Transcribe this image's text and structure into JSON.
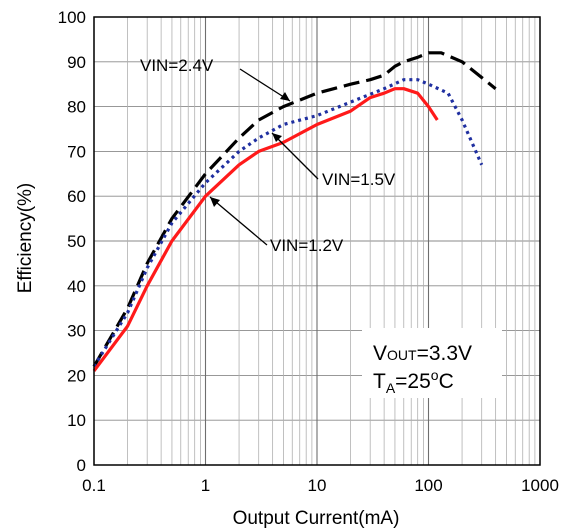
{
  "chart_data": {
    "type": "line",
    "title": "",
    "xlabel": "Output Current(mA)",
    "ylabel": "Efficiency(%)",
    "x_scale": "log",
    "xlim": [
      0.1,
      1000
    ],
    "ylim": [
      0,
      100
    ],
    "x_ticks": [
      0.1,
      1,
      10,
      100,
      1000
    ],
    "x_tick_labels": [
      "0.1",
      "1",
      "10",
      "100",
      "1000"
    ],
    "y_ticks": [
      0,
      10,
      20,
      30,
      40,
      50,
      60,
      70,
      80,
      90,
      100
    ],
    "y_tick_labels": [
      "0",
      "10",
      "20",
      "30",
      "40",
      "50",
      "60",
      "70",
      "80",
      "90",
      "100"
    ],
    "grid": true,
    "series": [
      {
        "name": "VIN=2.4V",
        "color": "#000000",
        "dash": "long-dash",
        "x": [
          0.1,
          0.2,
          0.3,
          0.5,
          1,
          2,
          3,
          5,
          10,
          20,
          30,
          40,
          50,
          60,
          80,
          100,
          130,
          200,
          400
        ],
        "y": [
          22,
          35,
          45,
          55,
          65,
          73,
          77,
          80,
          83,
          85,
          86,
          87,
          89,
          90,
          91,
          92,
          92,
          90,
          84
        ]
      },
      {
        "name": "VIN=1.5V",
        "color": "#1f2fa0",
        "dash": "dot",
        "x": [
          0.1,
          0.2,
          0.3,
          0.5,
          1,
          2,
          3,
          5,
          10,
          20,
          40,
          60,
          80,
          100,
          150,
          200,
          300
        ],
        "y": [
          22,
          34,
          44,
          54,
          63,
          70,
          73,
          76,
          78,
          81,
          84,
          86,
          86,
          85,
          83,
          77,
          67
        ]
      },
      {
        "name": "VIN=1.2V",
        "color": "#ff1a1a",
        "dash": "solid",
        "x": [
          0.1,
          0.2,
          0.3,
          0.5,
          1,
          2,
          3,
          5,
          10,
          20,
          30,
          40,
          50,
          60,
          80,
          100,
          120
        ],
        "y": [
          21,
          31,
          40,
          50,
          60,
          67,
          70,
          72,
          76,
          79,
          82,
          83,
          84,
          84,
          83,
          80,
          77
        ]
      }
    ],
    "annotations": {
      "vout": "V",
      "vout_sub": "OUT",
      "vout_value": "=3.3V",
      "ta": "T",
      "ta_sub": "A",
      "ta_value": "=25",
      "ta_sup": "o",
      "ta_unit": "C"
    }
  }
}
